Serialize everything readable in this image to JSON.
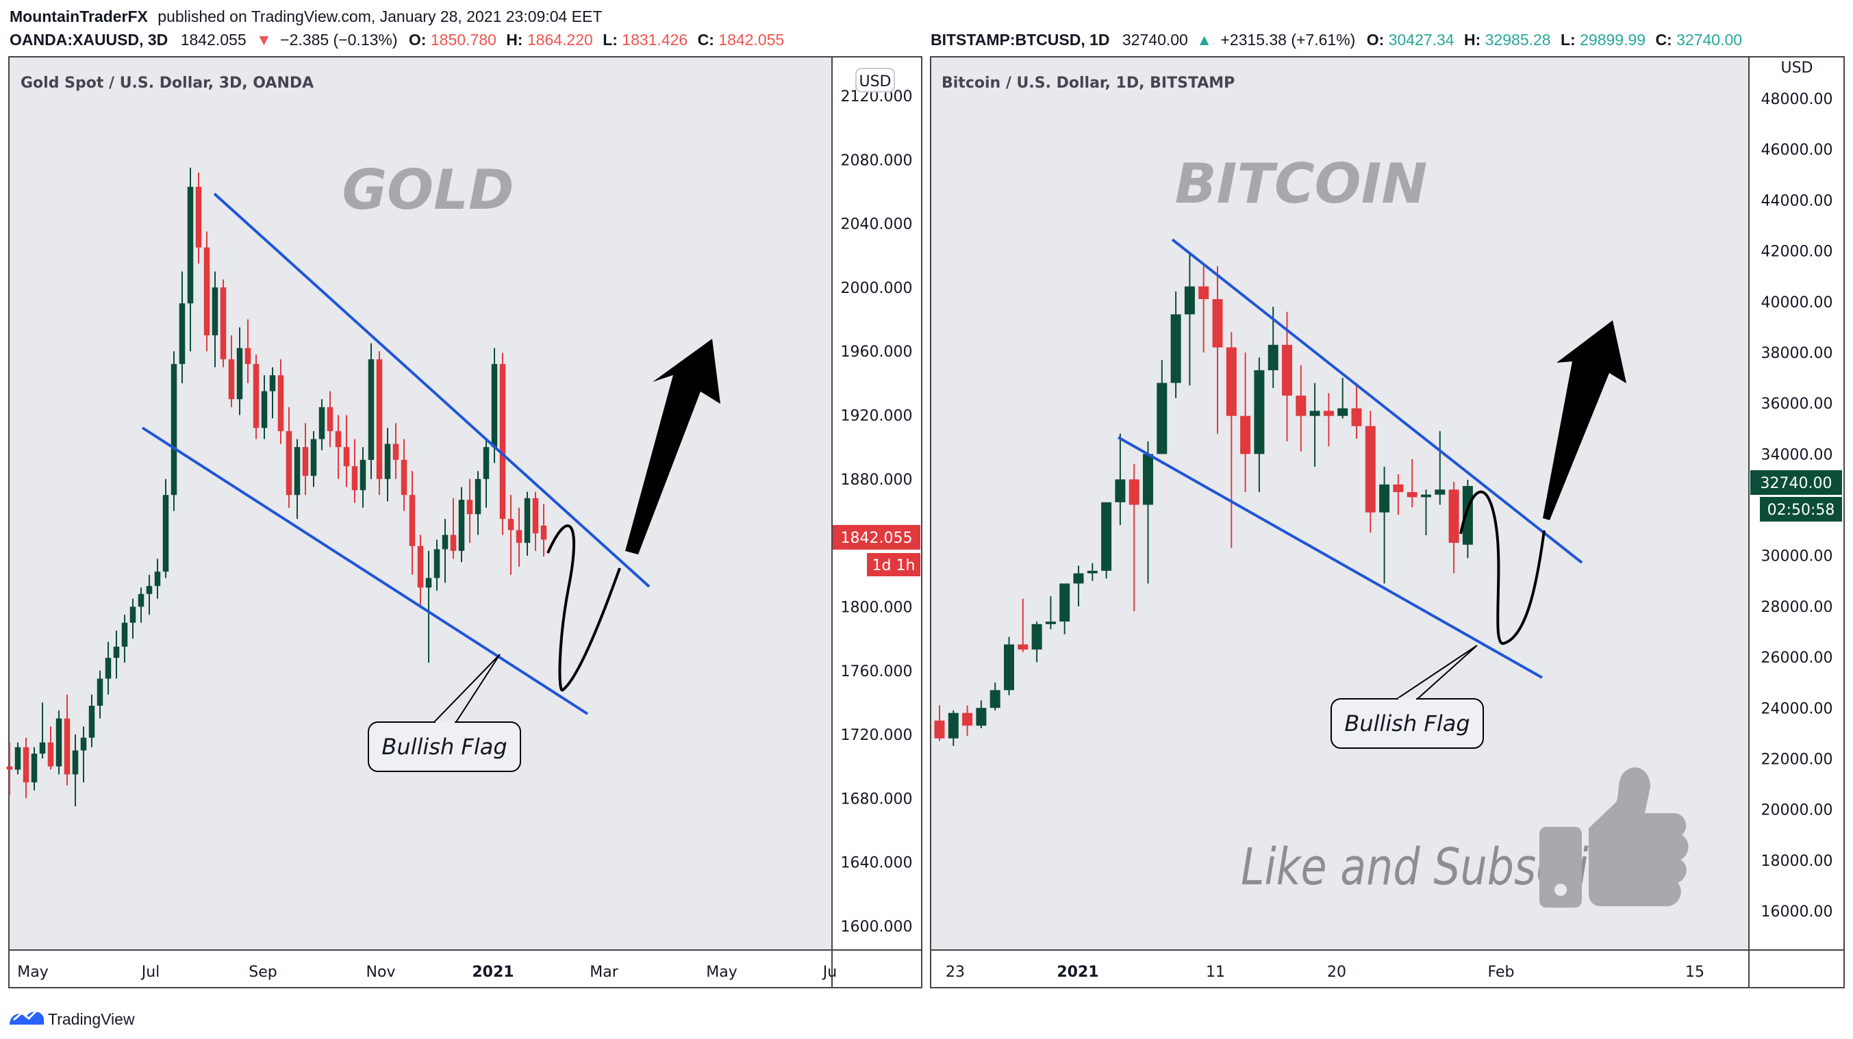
{
  "header": {
    "author": "MountainTraderFX",
    "published": "published on TradingView.com, January 28, 2021 23:09:04 EET",
    "left": {
      "symbol": "OANDA:XAUUSD, 3D",
      "last": "1842.055",
      "arrow": "▼",
      "change": "−2.385 (−0.13%)",
      "o_label": "O:",
      "o": "1850.780",
      "h_label": "H:",
      "h": "1864.220",
      "l_label": "L:",
      "l": "1831.426",
      "c_label": "C:",
      "c": "1842.055",
      "color": "#ef5350"
    },
    "right": {
      "symbol": "BITSTAMP:BTCUSD, 1D",
      "last": "32740.00",
      "arrow": "▲",
      "change": "+2315.38 (+7.61%)",
      "o_label": "O:",
      "o": "30427.34",
      "h_label": "H:",
      "h": "32985.28",
      "l_label": "L:",
      "l": "29899.99",
      "c_label": "C:",
      "c": "32740.00",
      "color": "#26a69a"
    }
  },
  "footer": {
    "brand": "TradingView"
  },
  "colors": {
    "up": "#0b4d39",
    "down": "#e0393e",
    "channel": "#1f56d8",
    "bg": "#e8e9ed"
  },
  "panels": {
    "left": {
      "title": "Gold Spot / U.S. Dollar, 3D, OANDA",
      "watermark": "GOLD",
      "callout": "Bullish Flag",
      "currency": "USD",
      "price_badge": "1842.055",
      "time_badge": "1d 1h"
    },
    "right": {
      "title": "Bitcoin / U.S. Dollar, 1D, BITSTAMP",
      "watermark": "BITCOIN",
      "callout": "Bullish Flag",
      "currency": "USD",
      "price_badge": "32740.00",
      "time_badge": "02:50:58",
      "like_text": "Like and Subscribe!"
    }
  },
  "chart_data": [
    {
      "type": "candlestick",
      "title": "Gold Spot / U.S. Dollar, 3D, OANDA",
      "ylabel": "USD",
      "ylim": [
        1580,
        2130
      ],
      "y_ticks": [
        "2120.000",
        "2080.000",
        "2040.000",
        "2000.000",
        "1960.000",
        "1920.000",
        "1880.000",
        "1840.000",
        "1800.000",
        "1760.000",
        "1720.000",
        "1680.000",
        "1640.000",
        "1600.000"
      ],
      "x_ticks": [
        "May",
        "Jul",
        "Sep",
        "Nov",
        "2021",
        "Mar",
        "May",
        "Ju"
      ],
      "last_price": 1842.055,
      "ohlc": [
        [
          1700,
          1715,
          1682,
          1698
        ],
        [
          1698,
          1715,
          1695,
          1712
        ],
        [
          1712,
          1718,
          1680,
          1690
        ],
        [
          1690,
          1712,
          1685,
          1708
        ],
        [
          1708,
          1740,
          1705,
          1715
        ],
        [
          1715,
          1725,
          1698,
          1700
        ],
        [
          1700,
          1735,
          1695,
          1730
        ],
        [
          1730,
          1745,
          1688,
          1695
        ],
        [
          1695,
          1720,
          1675,
          1710
        ],
        [
          1710,
          1725,
          1690,
          1718
        ],
        [
          1718,
          1745,
          1712,
          1738
        ],
        [
          1738,
          1760,
          1730,
          1755
        ],
        [
          1755,
          1778,
          1745,
          1768
        ],
        [
          1768,
          1785,
          1755,
          1775
        ],
        [
          1775,
          1795,
          1765,
          1790
        ],
        [
          1790,
          1805,
          1780,
          1800
        ],
        [
          1800,
          1812,
          1790,
          1808
        ],
        [
          1808,
          1820,
          1795,
          1813
        ],
        [
          1813,
          1830,
          1805,
          1822
        ],
        [
          1822,
          1880,
          1818,
          1870
        ],
        [
          1870,
          1960,
          1860,
          1952
        ],
        [
          1952,
          2010,
          1940,
          1990
        ],
        [
          1990,
          2075,
          1960,
          2063
        ],
        [
          2063,
          2072,
          2015,
          2025
        ],
        [
          2025,
          2035,
          1960,
          1970
        ],
        [
          1970,
          2010,
          1950,
          2000
        ],
        [
          2000,
          2005,
          1950,
          1955
        ],
        [
          1955,
          1970,
          1925,
          1930
        ],
        [
          1930,
          1975,
          1920,
          1962
        ],
        [
          1962,
          1980,
          1940,
          1952
        ],
        [
          1952,
          1958,
          1905,
          1912
        ],
        [
          1912,
          1945,
          1905,
          1935
        ],
        [
          1935,
          1950,
          1918,
          1945
        ],
        [
          1945,
          1955,
          1902,
          1910
        ],
        [
          1910,
          1925,
          1862,
          1870
        ],
        [
          1870,
          1905,
          1855,
          1900
        ],
        [
          1900,
          1915,
          1870,
          1882
        ],
        [
          1882,
          1910,
          1875,
          1905
        ],
        [
          1905,
          1930,
          1898,
          1925
        ],
        [
          1925,
          1935,
          1900,
          1910
        ],
        [
          1910,
          1920,
          1880,
          1900
        ],
        [
          1900,
          1920,
          1875,
          1888
        ],
        [
          1888,
          1905,
          1865,
          1873
        ],
        [
          1873,
          1900,
          1862,
          1892
        ],
        [
          1892,
          1965,
          1880,
          1955
        ],
        [
          1955,
          1960,
          1870,
          1880
        ],
        [
          1880,
          1912,
          1866,
          1902
        ],
        [
          1902,
          1915,
          1880,
          1892
        ],
        [
          1892,
          1905,
          1860,
          1870
        ],
        [
          1870,
          1885,
          1820,
          1838
        ],
        [
          1838,
          1845,
          1800,
          1812
        ],
        [
          1812,
          1835,
          1765,
          1818
        ],
        [
          1818,
          1842,
          1810,
          1836
        ],
        [
          1836,
          1855,
          1815,
          1845
        ],
        [
          1845,
          1868,
          1830,
          1835
        ],
        [
          1835,
          1875,
          1828,
          1867
        ],
        [
          1867,
          1880,
          1840,
          1858
        ],
        [
          1858,
          1885,
          1845,
          1880
        ],
        [
          1880,
          1905,
          1862,
          1900
        ],
        [
          1900,
          1962,
          1890,
          1952
        ],
        [
          1952,
          1959,
          1845,
          1855
        ],
        [
          1855,
          1870,
          1820,
          1848
        ],
        [
          1848,
          1862,
          1825,
          1840
        ],
        [
          1840,
          1872,
          1832,
          1868
        ],
        [
          1868,
          1872,
          1835,
          1846
        ],
        [
          1850.78,
          1864.22,
          1831.426,
          1842.055
        ]
      ]
    },
    {
      "type": "candlestick",
      "title": "Bitcoin / U.S. Dollar, 1D, BITSTAMP",
      "ylabel": "USD",
      "ylim": [
        14000,
        49000
      ],
      "y_ticks": [
        "48000.00",
        "46000.00",
        "44000.00",
        "42000.00",
        "40000.00",
        "38000.00",
        "36000.00",
        "34000.00",
        "32000.00",
        "30000.00",
        "28000.00",
        "26000.00",
        "24000.00",
        "22000.00",
        "20000.00",
        "18000.00",
        "16000.00"
      ],
      "x_ticks": [
        "23",
        "2021",
        "11",
        "20",
        "Feb",
        "15"
      ],
      "last_price": 32740.0,
      "ohlc": [
        [
          23500,
          24100,
          22700,
          22800
        ],
        [
          22800,
          23900,
          22500,
          23800
        ],
        [
          23800,
          24100,
          22900,
          23300
        ],
        [
          23300,
          24300,
          23200,
          24000
        ],
        [
          24000,
          25000,
          23900,
          24700
        ],
        [
          24700,
          26800,
          24500,
          26500
        ],
        [
          26500,
          28300,
          26200,
          26300
        ],
        [
          26300,
          27400,
          25800,
          27300
        ],
        [
          27300,
          28400,
          27100,
          27400
        ],
        [
          27400,
          28900,
          26900,
          28900
        ],
        [
          28900,
          29600,
          28000,
          29300
        ],
        [
          29300,
          29700,
          29000,
          29400
        ],
        [
          29400,
          32000,
          29100,
          32100
        ],
        [
          32100,
          34800,
          31200,
          33000
        ],
        [
          33000,
          33600,
          27800,
          32000
        ],
        [
          32000,
          34500,
          28900,
          34000
        ],
        [
          34000,
          37700,
          34000,
          36800
        ],
        [
          36800,
          40400,
          36200,
          39500
        ],
        [
          39500,
          41900,
          36700,
          40600
        ],
        [
          40600,
          41400,
          38000,
          40100
        ],
        [
          40100,
          41400,
          34800,
          38200
        ],
        [
          38200,
          38800,
          30300,
          35500
        ],
        [
          35500,
          38000,
          32500,
          34000
        ],
        [
          34000,
          37800,
          32500,
          37300
        ],
        [
          37300,
          39800,
          36600,
          38300
        ],
        [
          38300,
          39600,
          34500,
          36300
        ],
        [
          36300,
          37500,
          34100,
          35500
        ],
        [
          35500,
          36800,
          33500,
          35700
        ],
        [
          35700,
          36400,
          34300,
          35500
        ],
        [
          35500,
          37000,
          35400,
          35800
        ],
        [
          35800,
          36800,
          34600,
          35100
        ],
        [
          35100,
          35700,
          30900,
          31700
        ],
        [
          31700,
          33500,
          28900,
          32800
        ],
        [
          32800,
          33200,
          31600,
          32500
        ],
        [
          32500,
          33800,
          31900,
          32300
        ],
        [
          32300,
          32600,
          30800,
          32400
        ],
        [
          32400,
          34900,
          32000,
          32600
        ],
        [
          32600,
          32900,
          29300,
          30500
        ],
        [
          30427.34,
          32985.28,
          29899.99,
          32740.0
        ]
      ]
    }
  ]
}
